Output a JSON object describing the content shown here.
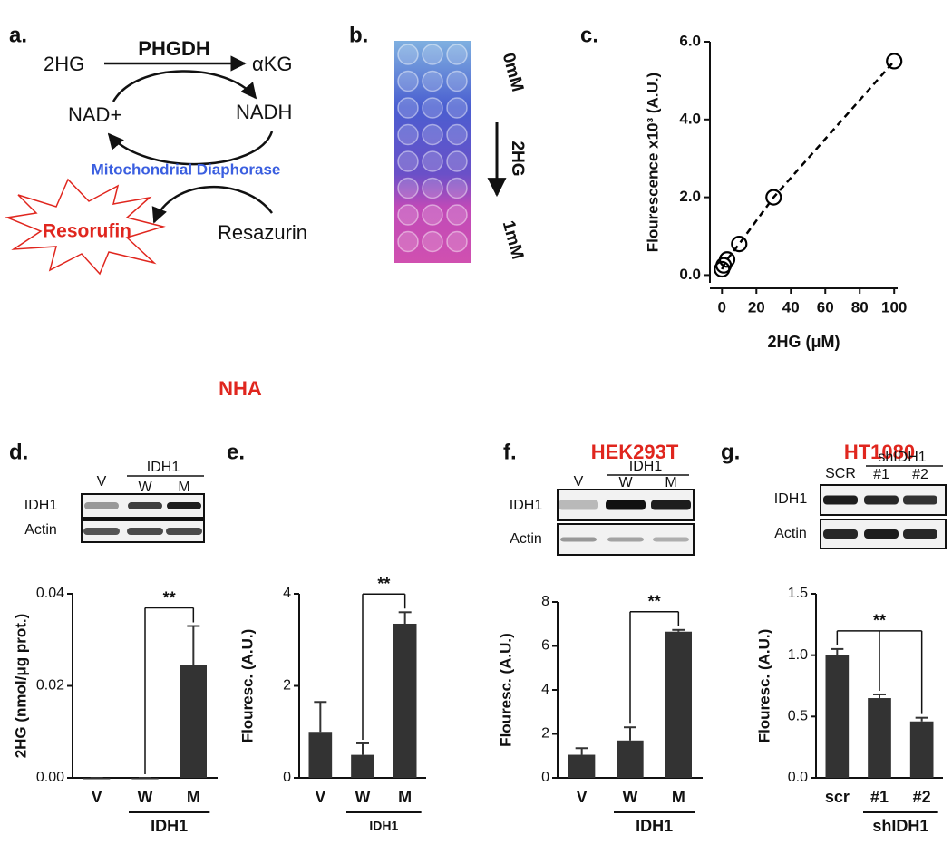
{
  "diagram": {
    "label": "a.",
    "substrate": "2HG",
    "enzyme": "PHGDH",
    "product": "αKG",
    "cofactor_in": "NAD+",
    "cofactor_out": "NADH",
    "coupling_enzyme": "Mitochondrial Diaphorase",
    "dye_product": "Resorufin",
    "dye_substrate": "Resazurin"
  },
  "plate": {
    "label": "b.",
    "top": "0mM",
    "bottom": "1mM",
    "arrow": "2HG"
  },
  "headers": {
    "nha": "NHA",
    "hek": "HEK293T",
    "ht": "HT1080"
  },
  "blots": {
    "d": {
      "lanes": [
        "V",
        "W",
        "M"
      ],
      "group": "IDH1",
      "rows": [
        "IDH1",
        "Actin"
      ]
    },
    "f": {
      "lanes": [
        "V",
        "W",
        "M"
      ],
      "group": "IDH1",
      "rows": [
        "IDH1",
        "Actin"
      ]
    },
    "g": {
      "lanes": [
        "SCR",
        "#1",
        "#2"
      ],
      "group": "shIDH1",
      "rows": [
        "IDH1",
        "Actin"
      ]
    }
  },
  "chart_data": [
    {
      "type": "scatter",
      "label": "c.",
      "x": [
        0,
        1,
        3,
        10,
        30,
        100
      ],
      "values": [
        0.15,
        0.25,
        0.4,
        0.8,
        2.0,
        5.5
      ],
      "xlim": [
        -7,
        102
      ],
      "xticks": [
        0,
        20,
        40,
        60,
        80,
        100
      ],
      "ylim": [
        -0.2,
        6.0
      ],
      "yticks": [
        {
          "value": 0,
          "label": "0.0"
        },
        {
          "value": 2,
          "label": "2.0"
        },
        {
          "value": 4,
          "label": "4.0"
        },
        {
          "value": 6,
          "label": "6.0"
        }
      ],
      "x_label": "2HG (μM)",
      "y_label": "Flourescence x10³ (A.U.)",
      "line_style": "dashed",
      "color": "#000000"
    },
    {
      "type": "bar",
      "label": "d.",
      "categories": [
        "V",
        "W",
        "M"
      ],
      "values": [
        0,
        0,
        0.0245
      ],
      "errors": [
        0,
        0,
        0.0085
      ],
      "ylim": [
        0,
        0.04
      ],
      "yticks": [
        {
          "value": 0,
          "label": "0.00"
        },
        {
          "value": 0.02,
          "label": "0.02"
        },
        {
          "value": 0.04,
          "label": "0.04"
        }
      ],
      "y_label": "2HG (nmol/μg prot.)",
      "group_label": "IDH1",
      "significance": "**",
      "color": "#333333"
    },
    {
      "type": "bar",
      "label": "e.",
      "categories": [
        "V",
        "W",
        "M"
      ],
      "values": [
        1.0,
        0.5,
        3.35
      ],
      "errors": [
        0.65,
        0.25,
        0.25
      ],
      "ylim": [
        0,
        4
      ],
      "yticks": [
        0,
        2,
        4
      ],
      "y_label": "Flouresc. (A.U.)",
      "group_label": "IDH1",
      "significance": "**",
      "color": "#333333"
    },
    {
      "type": "bar",
      "label": "f.",
      "categories": [
        "V",
        "W",
        "M"
      ],
      "values": [
        1.05,
        1.7,
        6.65
      ],
      "errors": [
        0.3,
        0.6,
        0.08
      ],
      "ylim": [
        0,
        8
      ],
      "yticks": [
        0,
        2,
        4,
        6,
        8
      ],
      "y_label": "Flouresc. (A.U.)",
      "group_label": "IDH1",
      "significance": "**",
      "color": "#333333"
    },
    {
      "type": "bar",
      "label": "g.",
      "categories": [
        "scr",
        "#1",
        "#2"
      ],
      "values": [
        1.0,
        0.65,
        0.46
      ],
      "errors": [
        0.05,
        0.03,
        0.03
      ],
      "ylim": [
        0,
        1.5
      ],
      "yticks": [
        {
          "value": 0,
          "label": "0.0"
        },
        {
          "value": 0.5,
          "label": "0.5"
        },
        {
          "value": 1.0,
          "label": "1.0"
        },
        {
          "value": 1.5,
          "label": "1.5"
        }
      ],
      "y_label": "Flouresc. (A.U.)",
      "group_label": "shIDH1",
      "significance": "**",
      "color": "#333333"
    }
  ]
}
